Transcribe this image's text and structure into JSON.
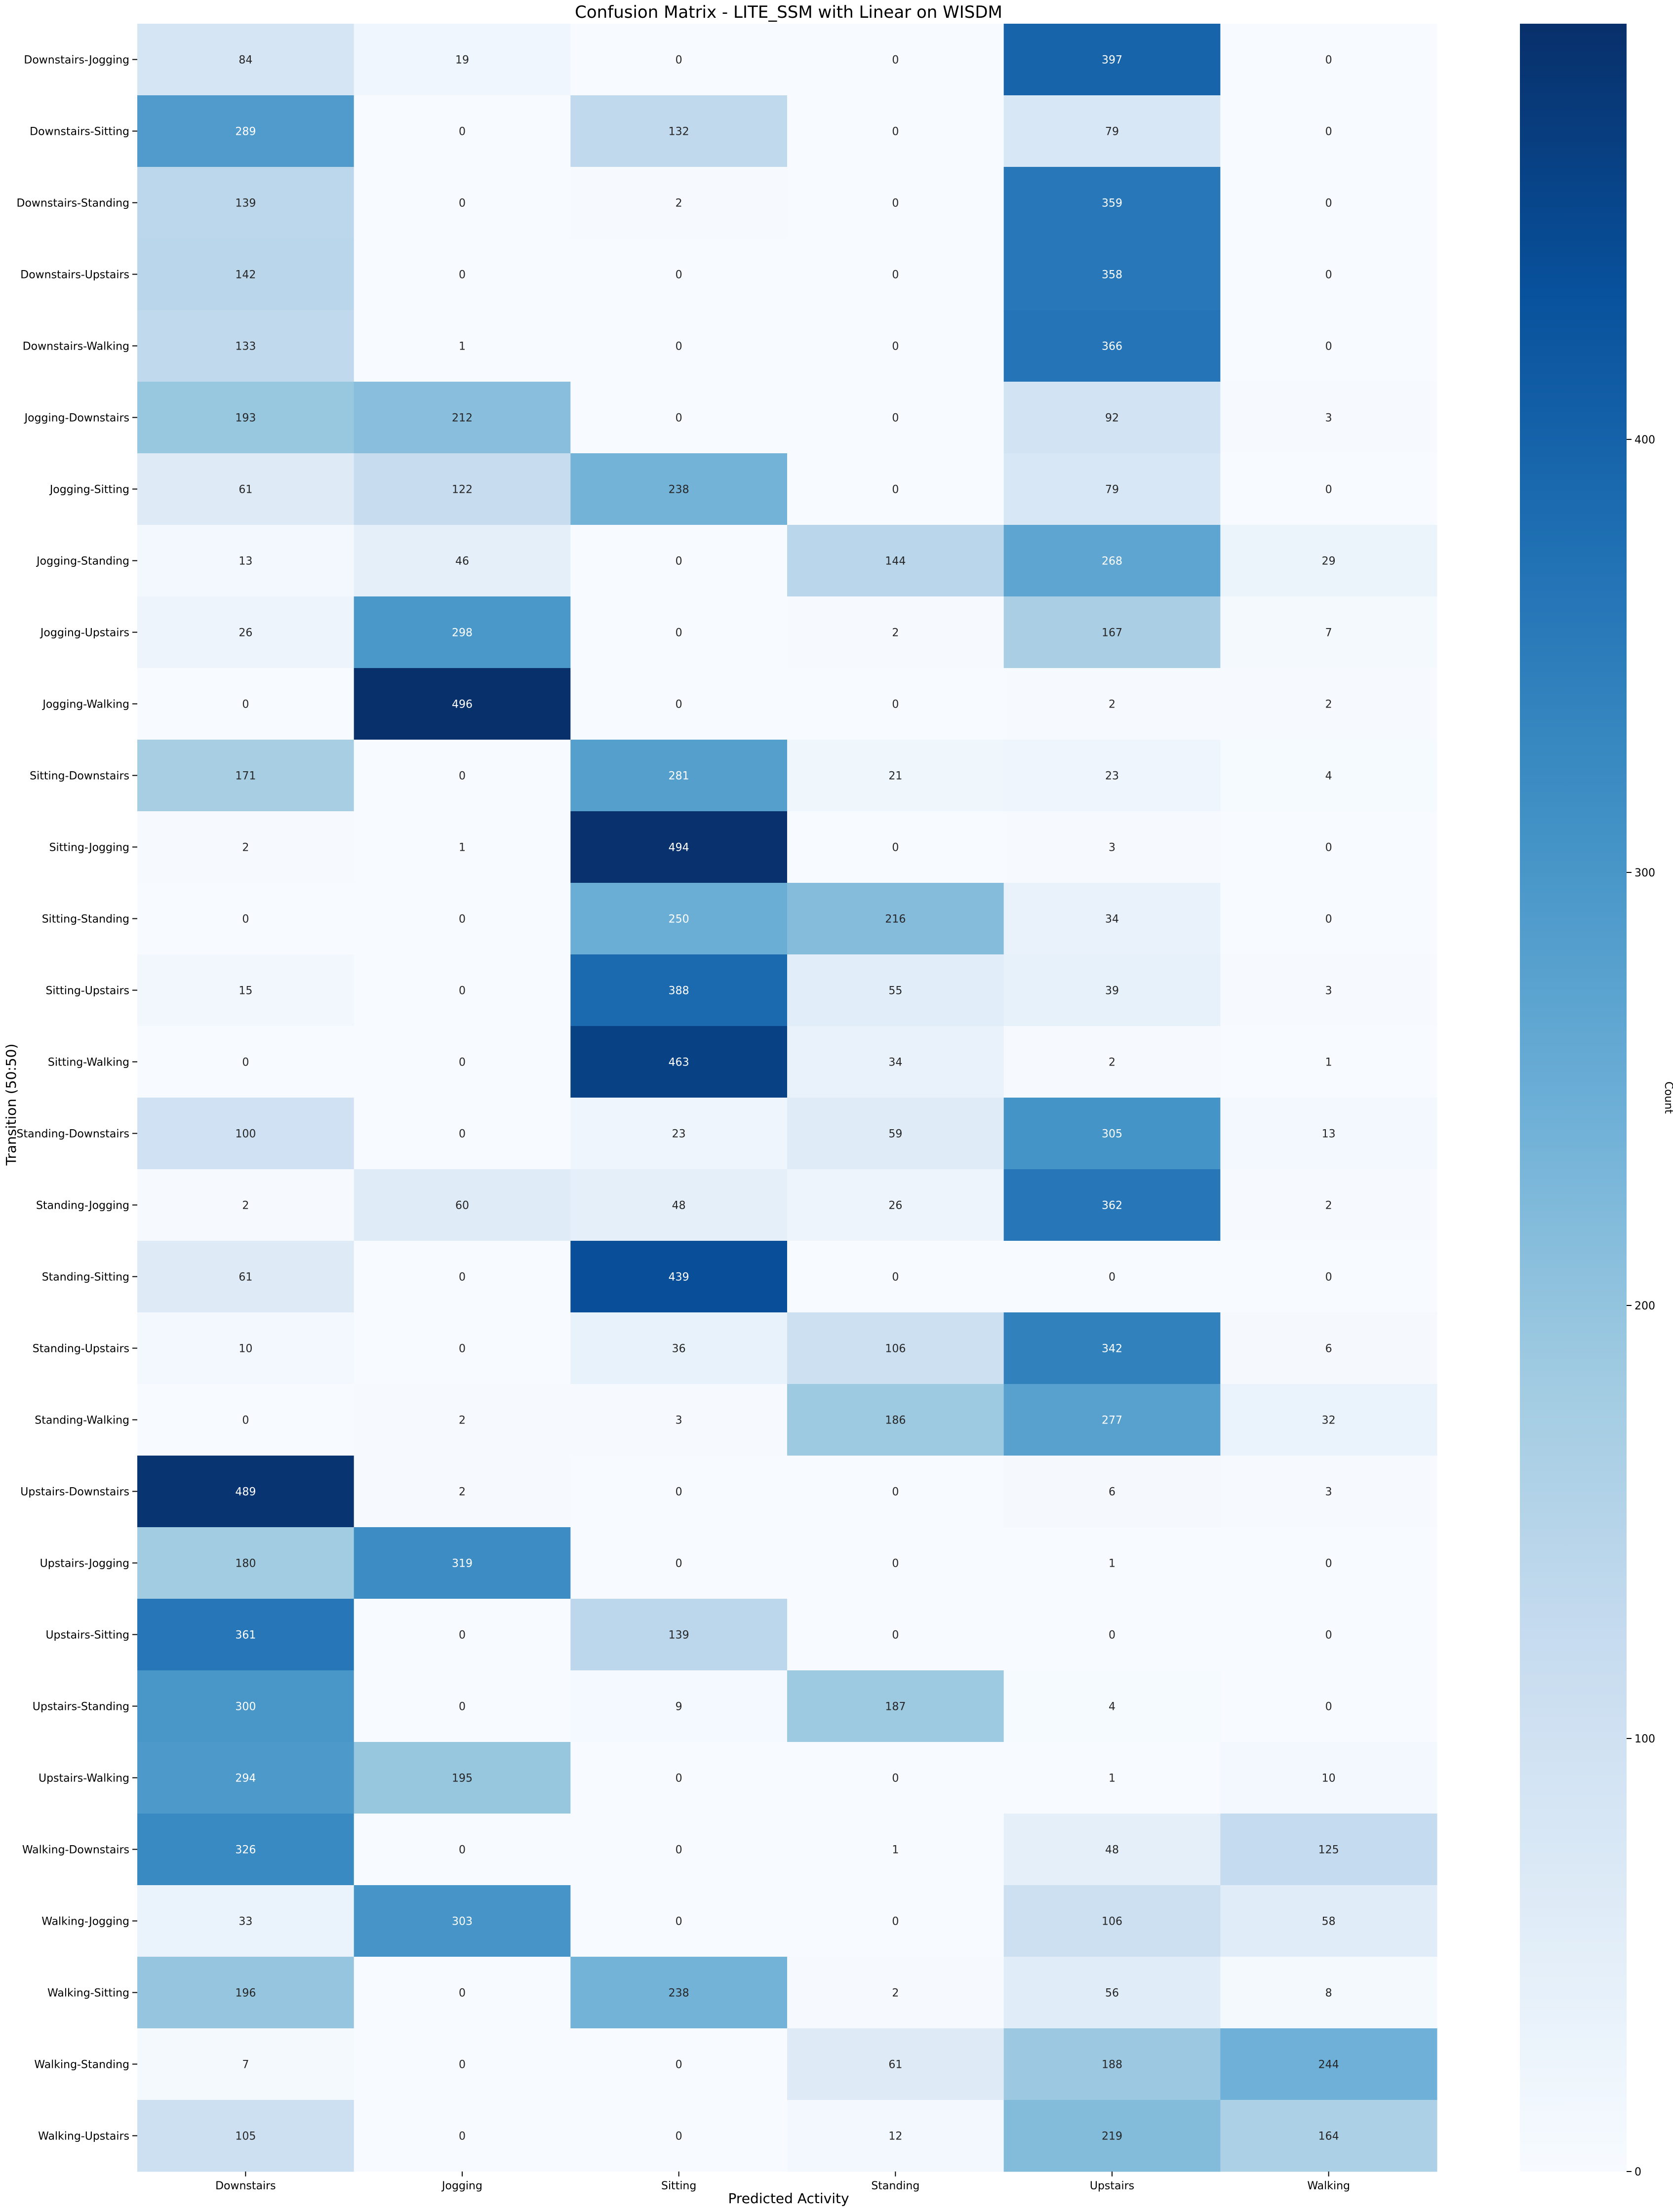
{
  "chart_data": {
    "type": "heatmap",
    "title": "Confusion Matrix - LITE_SSM with Linear on WISDM",
    "xlabel": "Predicted Activity",
    "ylabel": "Transition (50:50)",
    "colorbar_label": "Count",
    "colormap": "Blues",
    "vmin": 0,
    "vmax": 496,
    "colorbar_ticks": [
      0,
      100,
      200,
      300,
      400
    ],
    "colors": {
      "low": "#f7fbff",
      "high": "#08306b"
    },
    "columns": [
      "Downstairs",
      "Jogging",
      "Sitting",
      "Standing",
      "Upstairs",
      "Walking"
    ],
    "rows": [
      "Downstairs-Jogging",
      "Downstairs-Sitting",
      "Downstairs-Standing",
      "Downstairs-Upstairs",
      "Downstairs-Walking",
      "Jogging-Downstairs",
      "Jogging-Sitting",
      "Jogging-Standing",
      "Jogging-Upstairs",
      "Jogging-Walking",
      "Sitting-Downstairs",
      "Sitting-Jogging",
      "Sitting-Standing",
      "Sitting-Upstairs",
      "Sitting-Walking",
      "Standing-Downstairs",
      "Standing-Jogging",
      "Standing-Sitting",
      "Standing-Upstairs",
      "Standing-Walking",
      "Upstairs-Downstairs",
      "Upstairs-Jogging",
      "Upstairs-Sitting",
      "Upstairs-Standing",
      "Upstairs-Walking",
      "Walking-Downstairs",
      "Walking-Jogging",
      "Walking-Sitting",
      "Walking-Standing",
      "Walking-Upstairs"
    ],
    "values": [
      [
        84,
        19,
        0,
        0,
        397,
        0
      ],
      [
        289,
        0,
        132,
        0,
        79,
        0
      ],
      [
        139,
        0,
        2,
        0,
        359,
        0
      ],
      [
        142,
        0,
        0,
        0,
        358,
        0
      ],
      [
        133,
        1,
        0,
        0,
        366,
        0
      ],
      [
        193,
        212,
        0,
        0,
        92,
        3
      ],
      [
        61,
        122,
        238,
        0,
        79,
        0
      ],
      [
        13,
        46,
        0,
        144,
        268,
        29
      ],
      [
        26,
        298,
        0,
        2,
        167,
        7
      ],
      [
        0,
        496,
        0,
        0,
        2,
        2
      ],
      [
        171,
        0,
        281,
        21,
        23,
        4
      ],
      [
        2,
        1,
        494,
        0,
        3,
        0
      ],
      [
        0,
        0,
        250,
        216,
        34,
        0
      ],
      [
        15,
        0,
        388,
        55,
        39,
        3
      ],
      [
        0,
        0,
        463,
        34,
        2,
        1
      ],
      [
        100,
        0,
        23,
        59,
        305,
        13
      ],
      [
        2,
        60,
        48,
        26,
        362,
        2
      ],
      [
        61,
        0,
        439,
        0,
        0,
        0
      ],
      [
        10,
        0,
        36,
        106,
        342,
        6
      ],
      [
        0,
        2,
        3,
        186,
        277,
        32
      ],
      [
        489,
        2,
        0,
        0,
        6,
        3
      ],
      [
        180,
        319,
        0,
        0,
        1,
        0
      ],
      [
        361,
        0,
        139,
        0,
        0,
        0
      ],
      [
        300,
        0,
        9,
        187,
        4,
        0
      ],
      [
        294,
        195,
        0,
        0,
        1,
        10
      ],
      [
        326,
        0,
        0,
        1,
        48,
        125
      ],
      [
        33,
        303,
        0,
        0,
        106,
        58
      ],
      [
        196,
        0,
        238,
        2,
        56,
        8
      ],
      [
        7,
        0,
        0,
        61,
        188,
        244
      ],
      [
        105,
        0,
        0,
        12,
        219,
        164
      ]
    ]
  }
}
